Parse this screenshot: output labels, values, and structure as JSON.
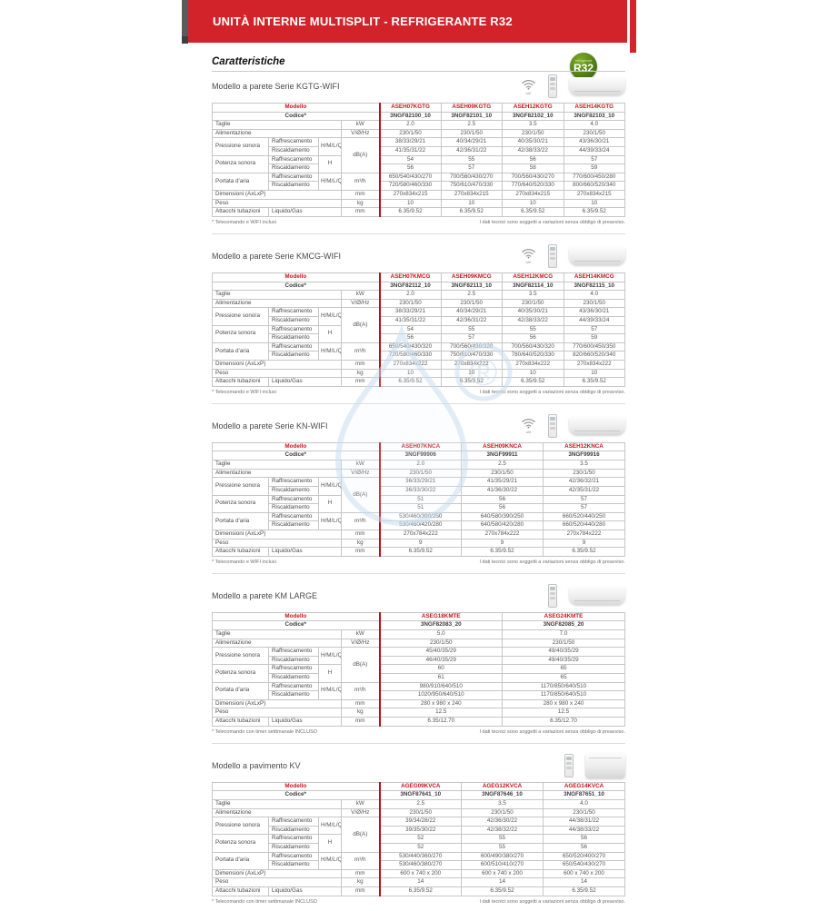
{
  "banner": {
    "title": "UNITÀ INTERNE MULTISPLIT - REFRIGERANTE R32"
  },
  "badge": {
    "top": "refrigerant",
    "label": "R32"
  },
  "page_heading": "Caratteristiche",
  "icons": {
    "wifi_label": "wifi"
  },
  "colors": {
    "red": "#d2232a",
    "modelred": "#c4161c",
    "green": "#4c7a1d",
    "wmblue": "#cfe3f0"
  },
  "labels": {
    "modello": "Modello",
    "codice": "Codice*",
    "taglie": "Taglie",
    "alimentazione": "Alimentazione",
    "pressione": "Pressione sonora",
    "potenza": "Potenza sonora",
    "portata": "Portata d'aria",
    "dimensioni": "Dimensioni (AxLxP)",
    "peso": "Peso",
    "attacchi": "Attacchi tubazioni",
    "raffrescamento": "Raffrescamento",
    "riscaldamento": "Riscaldamento",
    "liquido_gas": "Liquido/Gas",
    "hmlq": "H/M/L/Q",
    "h": "H",
    "units": {
      "kw": "kW",
      "vhz": "V/Ø/Hz",
      "dba": "dB(A)",
      "m3h": "m³/h",
      "mm": "mm",
      "kg": "kg"
    }
  },
  "footnote_right": "I dati tecnici sono soggetti a variazioni senza obbligo di preavviso.",
  "sections": [
    {
      "title": "Modello a parete Serie KGTG-WIFI",
      "wifi": true,
      "unit_type": "wall",
      "footnote": "* Telecomando e WIFI inclusi",
      "models": [
        "ASEH07KGTG",
        "ASEH09KGTG",
        "ASEH12KGTG",
        "ASEH14KGTG"
      ],
      "codes": [
        "3NGF82100_10",
        "3NGF82101_10",
        "3NGF82102_10",
        "3NGF82103_10"
      ],
      "taglie": [
        "2.0",
        "2.5",
        "3.5",
        "4.0"
      ],
      "alimentazione": [
        "230/1/50",
        "230/1/50",
        "230/1/50",
        "230/1/50"
      ],
      "pressione_raff": [
        "38/33/29/21",
        "40/34/29/21",
        "40/35/30/21",
        "43/36/30/21"
      ],
      "pressione_risc": [
        "41/35/31/22",
        "42/36/31/22",
        "42/38/33/22",
        "44/39/33/24"
      ],
      "potenza_raff": [
        "54",
        "55",
        "56",
        "57"
      ],
      "potenza_risc": [
        "56",
        "57",
        "58",
        "59"
      ],
      "portata_raff": [
        "650/540/430/270",
        "700/560/430/270",
        "700/560/430/270",
        "770/600/450/280"
      ],
      "portata_risc": [
        "720/580/460/330",
        "750/610/470/330",
        "770/640/520/330",
        "800/660/520/340"
      ],
      "dimensioni": [
        "270x834x215",
        "270x834x215",
        "270x834x215",
        "270x834x215"
      ],
      "peso": [
        "10",
        "10",
        "10",
        "10"
      ],
      "attacchi": [
        "6.35/9.52",
        "6.35/9.52",
        "6.35/9.52",
        "6.35/9.52"
      ]
    },
    {
      "title": "Modello a parete Serie KMCG-WIFI",
      "wifi": true,
      "unit_type": "wall",
      "footnote": "* Telecomando e WIFI inclusi",
      "models": [
        "ASEH07KMCG",
        "ASEH09KMCG",
        "ASEH12KMCG",
        "ASEH14KMCG"
      ],
      "codes": [
        "3NGF82112_10",
        "3NGF82113_10",
        "3NGF82114_10",
        "3NGF82115_10"
      ],
      "taglie": [
        "2.0",
        "2.5",
        "3.5",
        "4.0"
      ],
      "alimentazione": [
        "230/1/50",
        "230/1/50",
        "230/1/50",
        "230/1/50"
      ],
      "pressione_raff": [
        "38/33/29/21",
        "40/34/29/21",
        "40/35/30/21",
        "43/36/30/21"
      ],
      "pressione_risc": [
        "41/35/31/22",
        "42/36/31/22",
        "42/38/33/22",
        "44/39/33/24"
      ],
      "potenza_raff": [
        "54",
        "55",
        "55",
        "57"
      ],
      "potenza_risc": [
        "56",
        "57",
        "56",
        "59"
      ],
      "portata_raff": [
        "650/540/430/320",
        "700/560/430/320",
        "700/560/430/320",
        "770/600/450/350"
      ],
      "portata_risc": [
        "720/580/460/330",
        "750/610/470/330",
        "780/640/520/330",
        "820/660/520/340"
      ],
      "dimensioni": [
        "270x834x222",
        "270x834x222",
        "270x834x222",
        "270x834x222"
      ],
      "peso": [
        "10",
        "10",
        "10",
        "10"
      ],
      "attacchi": [
        "6.35/9.52",
        "6.35/9.52",
        "6.35/9.52",
        "6.35/9.52"
      ]
    },
    {
      "title": "Modello a parete Serie KN-WIFI",
      "wifi": true,
      "unit_type": "wall",
      "footnote": "* Telecomando e WIFI inclusi",
      "models": [
        "ASEH07KNCA",
        "ASEH09KNCA",
        "ASEH12KNCA"
      ],
      "codes": [
        "3NGF99906",
        "3NGF99911",
        "3NGF99916"
      ],
      "taglie": [
        "2.0",
        "2.5",
        "3.5"
      ],
      "alimentazione": [
        "230/1/50",
        "230/1/50",
        "230/1/50"
      ],
      "pressione_raff": [
        "36/33/29/21",
        "41/35/29/21",
        "42/36/32/21"
      ],
      "pressione_risc": [
        "36/33/30/22",
        "41/36/30/22",
        "42/35/31/22"
      ],
      "potenza_raff": [
        "51",
        "56",
        "57"
      ],
      "potenza_risc": [
        "51",
        "56",
        "57"
      ],
      "portata_raff": [
        "530/460/390/250",
        "640/580/390/250",
        "660/520/440/250"
      ],
      "portata_risc": [
        "530/460/420/280",
        "640/580/420/280",
        "660/520/440/280"
      ],
      "dimensioni": [
        "270x784x222",
        "270x784x222",
        "270x784x222"
      ],
      "peso": [
        "9",
        "9",
        "9"
      ],
      "attacchi": [
        "6.35/9.52",
        "6.35/9.52",
        "6.35/9.52"
      ]
    },
    {
      "title": "Modello a parete KM LARGE",
      "wifi": false,
      "unit_type": "wall",
      "footnote": "* Telecomando con timer settimanale INCLUSO",
      "models": [
        "ASEG18KMTE",
        "ASEG24KMTE"
      ],
      "codes": [
        "3NGF82083_20",
        "3NGF82085_20"
      ],
      "taglie": [
        "5.0",
        "7.0"
      ],
      "alimentazione": [
        "230/1/50",
        "230/1/50"
      ],
      "pressione_raff": [
        "45/40/35/29",
        "49/40/35/29"
      ],
      "pressione_risc": [
        "46/40/35/29",
        "49/40/35/29"
      ],
      "potenza_raff": [
        "60",
        "65"
      ],
      "potenza_risc": [
        "61",
        "65"
      ],
      "portata_raff": [
        "980/910/640/510",
        "1170/850/640/510"
      ],
      "portata_risc": [
        "1020/950/640/510",
        "1170/850/640/510"
      ],
      "dimensioni": [
        "280 x 980 x 240",
        "280 x 980 x 240"
      ],
      "peso": [
        "12.5",
        "12.5"
      ],
      "attacchi": [
        "6.35/12.70",
        "6.35/12.70"
      ]
    },
    {
      "title": "Modello a pavimento KV",
      "wifi": false,
      "unit_type": "floor",
      "footnote": "* Telecomando con timer settimanale INCLUSO",
      "models": [
        "AGEG09KVCA",
        "AGEG12KVCA",
        "AGEG14KVCA"
      ],
      "codes": [
        "3NGF87641_10",
        "3NGF87646_10",
        "3NGF87651_10"
      ],
      "taglie": [
        "2.5",
        "3.5",
        "4.0"
      ],
      "alimentazione": [
        "230/1/50",
        "230/1/50",
        "230/1/50"
      ],
      "pressione_raff": [
        "39/34/28/22",
        "42/36/30/22",
        "44/38/31/22"
      ],
      "pressione_risc": [
        "39/35/30/22",
        "42/38/32/22",
        "44/38/33/22"
      ],
      "potenza_raff": [
        "52",
        "55",
        "56"
      ],
      "potenza_risc": [
        "52",
        "55",
        "56"
      ],
      "portata_raff": [
        "530/440/360/270",
        "600/490/380/270",
        "650/520/400/270"
      ],
      "portata_risc": [
        "530/460/380/270",
        "600/510/410/270",
        "650/540/430/270"
      ],
      "dimensioni": [
        "600 x 740 x 200",
        "600 x 740 x 200",
        "600 x 740 x 200"
      ],
      "peso": [
        "14",
        "14",
        "14"
      ],
      "attacchi": [
        "6.35/9.52",
        "6.35/9.52",
        "6.35/9.52"
      ]
    }
  ]
}
